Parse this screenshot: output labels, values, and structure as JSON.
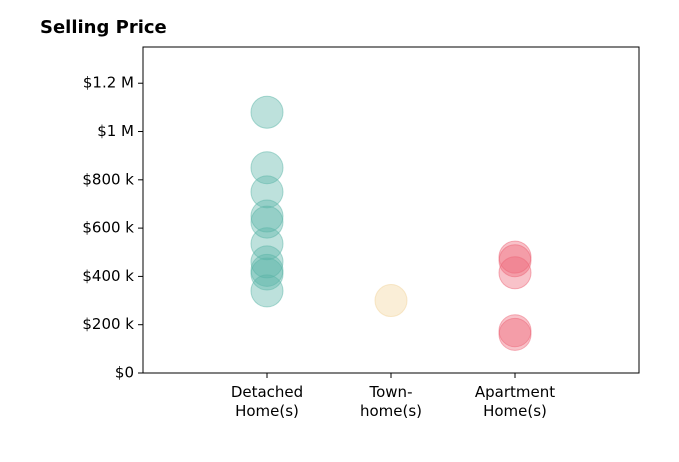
{
  "chart_data": {
    "type": "strip",
    "title": "Selling Price",
    "categories": [
      "Detached\nHome(s)",
      "Town-\nhome(s)",
      "Apartment\nHome(s)"
    ],
    "values": [
      [
        1080000,
        850000,
        750000,
        650000,
        625000,
        535000,
        460000,
        425000,
        410000,
        340000
      ],
      [
        300000
      ],
      [
        480000,
        465000,
        415000,
        175000,
        160000
      ]
    ],
    "colors": [
      "#5bb5a8",
      "#f2d49b",
      "#ee6677"
    ],
    "xlim": [
      -1,
      3
    ],
    "ylim": [
      0,
      1350000
    ],
    "yticks": [
      {
        "value": 0,
        "label": "$0"
      },
      {
        "value": 200000,
        "label": "$200 k"
      },
      {
        "value": 400000,
        "label": "$400 k"
      },
      {
        "value": 600000,
        "label": "$600 k"
      },
      {
        "value": 800000,
        "label": "$800 k"
      },
      {
        "value": 1000000,
        "label": "$1 M"
      },
      {
        "value": 1200000,
        "label": "$1.2 M"
      }
    ]
  }
}
